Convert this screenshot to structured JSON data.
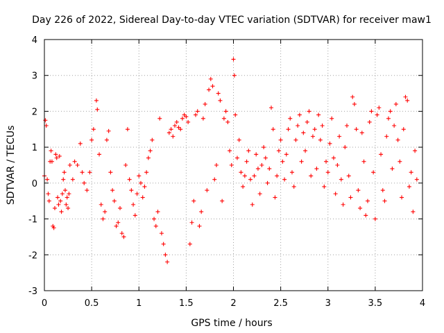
{
  "chart_data": {
    "type": "scatter",
    "title": "Day 226 of 2022, Sidereal Day-to-day VTEC variation (SDTVAR) for receiver maw1",
    "xlabel": "GPS time / hours",
    "ylabel": "SDTVAR / TECUs",
    "xlim": [
      0,
      4
    ],
    "ylim": [
      -3,
      4
    ],
    "xticks": [
      0,
      0.5,
      1,
      1.5,
      2,
      2.5,
      3,
      3.5,
      4
    ],
    "xtick_labels": [
      "0",
      "0.5",
      "1",
      "1.5",
      "2",
      "2.5",
      "3",
      "3.5",
      "4"
    ],
    "yticks": [
      -3,
      -2,
      -1,
      0,
      1,
      2,
      3,
      4
    ],
    "ytick_labels": [
      "-3",
      "-2",
      "-1",
      "0",
      "1",
      "2",
      "3",
      "4"
    ],
    "grid": true,
    "marker": "+",
    "series_color": "#ff0000",
    "series": [
      {
        "name": "maw1",
        "points": [
          [
            0.0,
            0.2
          ],
          [
            0.01,
            1.75
          ],
          [
            0.02,
            1.6
          ],
          [
            0.03,
            0.1
          ],
          [
            0.04,
            -0.3
          ],
          [
            0.05,
            -0.5
          ],
          [
            0.06,
            0.6
          ],
          [
            0.07,
            0.9
          ],
          [
            0.08,
            0.6
          ],
          [
            0.09,
            -1.2
          ],
          [
            0.1,
            -1.25
          ],
          [
            0.11,
            -0.7
          ],
          [
            0.12,
            0.8
          ],
          [
            0.13,
            0.7
          ],
          [
            0.14,
            -0.4
          ],
          [
            0.15,
            -0.6
          ],
          [
            0.16,
            0.75
          ],
          [
            0.17,
            -0.5
          ],
          [
            0.18,
            -0.8
          ],
          [
            0.19,
            -0.3
          ],
          [
            0.2,
            0.1
          ],
          [
            0.21,
            0.3
          ],
          [
            0.22,
            -0.2
          ],
          [
            0.23,
            -0.6
          ],
          [
            0.24,
            -0.4
          ],
          [
            0.25,
            -0.7
          ],
          [
            0.26,
            -0.3
          ],
          [
            0.27,
            0.5
          ],
          [
            0.3,
            0.1
          ],
          [
            0.32,
            0.6
          ],
          [
            0.35,
            0.5
          ],
          [
            0.38,
            1.1
          ],
          [
            0.4,
            0.3
          ],
          [
            0.42,
            0.0
          ],
          [
            0.45,
            -0.2
          ],
          [
            0.48,
            0.3
          ],
          [
            0.5,
            1.2
          ],
          [
            0.52,
            1.5
          ],
          [
            0.55,
            2.3
          ],
          [
            0.56,
            2.05
          ],
          [
            0.58,
            0.8
          ],
          [
            0.6,
            -0.6
          ],
          [
            0.62,
            -1.0
          ],
          [
            0.64,
            -0.8
          ],
          [
            0.66,
            1.2
          ],
          [
            0.68,
            1.45
          ],
          [
            0.7,
            0.3
          ],
          [
            0.72,
            -0.2
          ],
          [
            0.74,
            -0.5
          ],
          [
            0.76,
            -1.2
          ],
          [
            0.78,
            -1.1
          ],
          [
            0.8,
            -0.7
          ],
          [
            0.82,
            -1.4
          ],
          [
            0.84,
            -1.5
          ],
          [
            0.86,
            0.5
          ],
          [
            0.88,
            1.5
          ],
          [
            0.9,
            0.1
          ],
          [
            0.92,
            -0.2
          ],
          [
            0.94,
            -0.6
          ],
          [
            0.96,
            -0.9
          ],
          [
            0.98,
            -0.3
          ],
          [
            1.0,
            0.2
          ],
          [
            1.02,
            0.0
          ],
          [
            1.04,
            -0.4
          ],
          [
            1.06,
            -0.1
          ],
          [
            1.08,
            0.3
          ],
          [
            1.1,
            0.7
          ],
          [
            1.12,
            0.9
          ],
          [
            1.14,
            1.2
          ],
          [
            1.16,
            -1.0
          ],
          [
            1.18,
            -1.2
          ],
          [
            1.2,
            -0.8
          ],
          [
            1.22,
            1.8
          ],
          [
            1.24,
            -1.4
          ],
          [
            1.26,
            -1.7
          ],
          [
            1.28,
            -2.0
          ],
          [
            1.3,
            -2.2
          ],
          [
            1.32,
            1.4
          ],
          [
            1.34,
            1.5
          ],
          [
            1.36,
            1.3
          ],
          [
            1.38,
            1.6
          ],
          [
            1.4,
            1.7
          ],
          [
            1.42,
            1.55
          ],
          [
            1.44,
            1.5
          ],
          [
            1.46,
            1.8
          ],
          [
            1.48,
            1.9
          ],
          [
            1.5,
            1.85
          ],
          [
            1.52,
            1.7
          ],
          [
            1.54,
            -1.7
          ],
          [
            1.56,
            -1.1
          ],
          [
            1.58,
            -0.5
          ],
          [
            1.6,
            1.9
          ],
          [
            1.62,
            2.0
          ],
          [
            1.64,
            -1.2
          ],
          [
            1.66,
            -0.8
          ],
          [
            1.68,
            1.8
          ],
          [
            1.7,
            2.2
          ],
          [
            1.72,
            -0.2
          ],
          [
            1.74,
            2.6
          ],
          [
            1.76,
            2.9
          ],
          [
            1.78,
            2.7
          ],
          [
            1.8,
            0.1
          ],
          [
            1.82,
            0.5
          ],
          [
            1.84,
            2.5
          ],
          [
            1.86,
            2.3
          ],
          [
            1.88,
            -0.5
          ],
          [
            1.9,
            1.8
          ],
          [
            1.92,
            2.0
          ],
          [
            1.94,
            1.7
          ],
          [
            1.96,
            0.9
          ],
          [
            1.98,
            0.5
          ],
          [
            2.0,
            3.45
          ],
          [
            2.01,
            3.0
          ],
          [
            2.02,
            1.9
          ],
          [
            2.04,
            0.7
          ],
          [
            2.06,
            1.2
          ],
          [
            2.08,
            0.3
          ],
          [
            2.1,
            -0.1
          ],
          [
            2.12,
            0.2
          ],
          [
            2.14,
            0.6
          ],
          [
            2.16,
            0.9
          ],
          [
            2.18,
            0.1
          ],
          [
            2.2,
            -0.6
          ],
          [
            2.22,
            0.2
          ],
          [
            2.24,
            0.8
          ],
          [
            2.26,
            0.4
          ],
          [
            2.28,
            -0.3
          ],
          [
            2.3,
            0.5
          ],
          [
            2.32,
            1.0
          ],
          [
            2.34,
            0.7
          ],
          [
            2.36,
            0.0
          ],
          [
            2.38,
            0.4
          ],
          [
            2.4,
            2.1
          ],
          [
            2.42,
            1.5
          ],
          [
            2.44,
            -0.4
          ],
          [
            2.46,
            0.2
          ],
          [
            2.48,
            0.9
          ],
          [
            2.5,
            1.2
          ],
          [
            2.52,
            0.6
          ],
          [
            2.54,
            0.1
          ],
          [
            2.56,
            0.8
          ],
          [
            2.58,
            1.5
          ],
          [
            2.6,
            1.8
          ],
          [
            2.62,
            0.3
          ],
          [
            2.64,
            -0.1
          ],
          [
            2.66,
            1.2
          ],
          [
            2.68,
            1.6
          ],
          [
            2.7,
            1.9
          ],
          [
            2.72,
            0.6
          ],
          [
            2.74,
            1.4
          ],
          [
            2.76,
            0.9
          ],
          [
            2.78,
            1.7
          ],
          [
            2.8,
            2.0
          ],
          [
            2.82,
            0.2
          ],
          [
            2.84,
            1.3
          ],
          [
            2.86,
            1.5
          ],
          [
            2.88,
            0.4
          ],
          [
            2.9,
            1.9
          ],
          [
            2.92,
            1.2
          ],
          [
            2.94,
            1.6
          ],
          [
            2.96,
            -0.1
          ],
          [
            2.98,
            0.6
          ],
          [
            3.0,
            0.3
          ],
          [
            3.02,
            1.1
          ],
          [
            3.04,
            1.8
          ],
          [
            3.06,
            0.7
          ],
          [
            3.08,
            -0.3
          ],
          [
            3.1,
            0.5
          ],
          [
            3.12,
            1.3
          ],
          [
            3.14,
            0.1
          ],
          [
            3.16,
            -0.6
          ],
          [
            3.18,
            1.0
          ],
          [
            3.2,
            1.6
          ],
          [
            3.22,
            0.2
          ],
          [
            3.24,
            -0.4
          ],
          [
            3.26,
            2.4
          ],
          [
            3.28,
            2.2
          ],
          [
            3.3,
            1.5
          ],
          [
            3.32,
            -0.2
          ],
          [
            3.34,
            -0.7
          ],
          [
            3.36,
            1.4
          ],
          [
            3.38,
            0.6
          ],
          [
            3.4,
            -0.9
          ],
          [
            3.42,
            -0.5
          ],
          [
            3.44,
            1.7
          ],
          [
            3.46,
            2.0
          ],
          [
            3.48,
            0.3
          ],
          [
            3.5,
            -1.0
          ],
          [
            3.52,
            1.9
          ],
          [
            3.54,
            2.1
          ],
          [
            3.56,
            0.8
          ],
          [
            3.58,
            -0.2
          ],
          [
            3.6,
            -0.5
          ],
          [
            3.62,
            1.3
          ],
          [
            3.64,
            1.8
          ],
          [
            3.66,
            2.0
          ],
          [
            3.68,
            0.4
          ],
          [
            3.7,
            1.6
          ],
          [
            3.72,
            2.2
          ],
          [
            3.74,
            1.2
          ],
          [
            3.76,
            0.6
          ],
          [
            3.78,
            -0.4
          ],
          [
            3.8,
            1.5
          ],
          [
            3.82,
            2.4
          ],
          [
            3.84,
            2.3
          ],
          [
            3.86,
            -0.1
          ],
          [
            3.88,
            0.3
          ],
          [
            3.9,
            -0.8
          ],
          [
            3.92,
            0.9
          ],
          [
            3.94,
            0.1
          ]
        ]
      }
    ]
  }
}
